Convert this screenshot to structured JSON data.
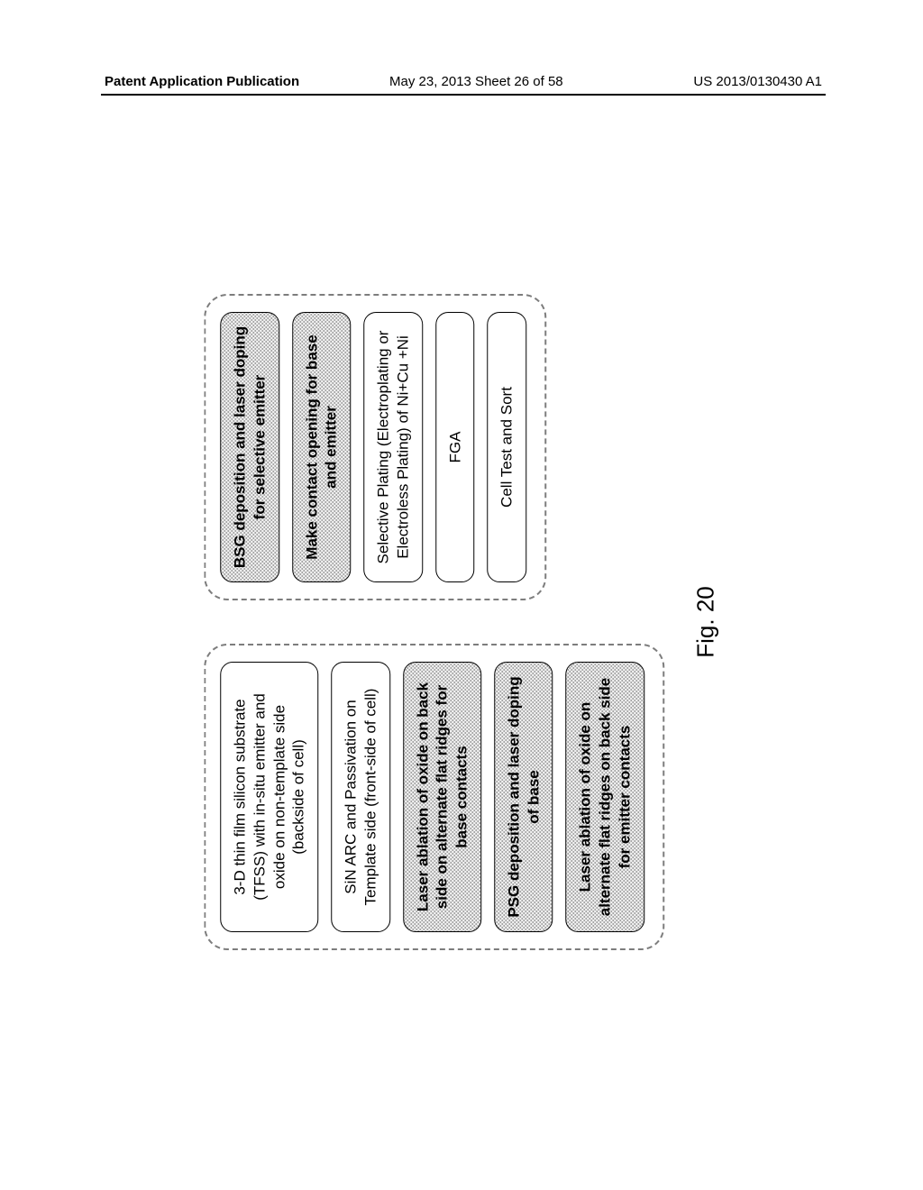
{
  "header": {
    "left": "Patent Application Publication",
    "middle": "May 23, 2013  Sheet 26 of 58",
    "right": "US 2013/0130430 A1"
  },
  "figure_label": "Fig. 20",
  "diagram": {
    "type": "flowchart",
    "layout": "two-grouped-columns",
    "group_border_color": "#7d7d7d",
    "group_border_style": "dashed",
    "group_border_radius": 26,
    "box_border_color": "#000000",
    "box_border_radius": 14,
    "box_fontsize": 17,
    "shade_pattern_color": "#9a9a9a",
    "shade_bg_color": "#f2f2f2",
    "groups": [
      {
        "id": "left",
        "boxes": [
          {
            "id": "b1",
            "shaded": false,
            "text": "3-D thin film silicon substrate (TFSS) with in-situ emitter and oxide on non-template side (backside of cell)"
          },
          {
            "id": "b2",
            "shaded": false,
            "text": "SiN ARC and Passivation on Template side (front-side of cell)"
          },
          {
            "id": "b3",
            "shaded": true,
            "text": "Laser ablation of oxide on back side on alternate flat ridges for base contacts"
          },
          {
            "id": "b4",
            "shaded": true,
            "text": "PSG deposition and laser doping of base"
          },
          {
            "id": "b5",
            "shaded": true,
            "text": "Laser ablation of oxide on alternate flat ridges on back side for emitter contacts"
          }
        ]
      },
      {
        "id": "right",
        "boxes": [
          {
            "id": "b6",
            "shaded": true,
            "text": "BSG deposition and laser doping for selective emitter"
          },
          {
            "id": "b7",
            "shaded": true,
            "text": "Make contact opening for base and emitter"
          },
          {
            "id": "b8",
            "shaded": false,
            "text": "Selective Plating (Electroplating or Electroless Plating) of Ni+Cu +Ni"
          },
          {
            "id": "b9",
            "shaded": false,
            "text": "FGA"
          },
          {
            "id": "b10",
            "shaded": false,
            "text": "Cell Test and Sort"
          }
        ]
      }
    ]
  }
}
